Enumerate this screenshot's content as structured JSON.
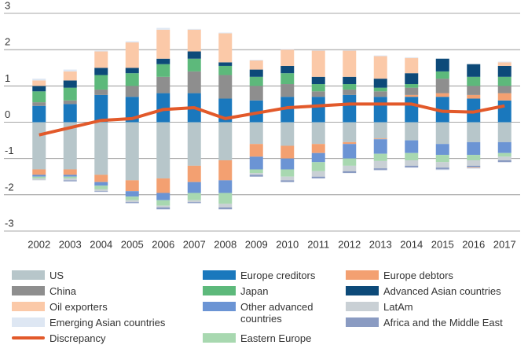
{
  "chart_data": {
    "type": "bar",
    "stacked": true,
    "categories": [
      "2002",
      "2003",
      "2004",
      "2005",
      "2006",
      "2007",
      "2008",
      "2009",
      "2010",
      "2011",
      "2012",
      "2013",
      "2014",
      "2015",
      "2016",
      "2017"
    ],
    "ylim": [
      -3,
      3
    ],
    "yticks": [
      -3,
      -2,
      -1,
      0,
      1,
      2,
      3
    ],
    "grid": true,
    "series": [
      {
        "name": "Europe creditors",
        "color": "#1a78bd",
        "values": [
          0.45,
          0.5,
          0.75,
          0.7,
          0.8,
          0.8,
          0.65,
          0.6,
          0.7,
          0.7,
          0.75,
          0.7,
          0.7,
          0.7,
          0.65,
          0.6
        ]
      },
      {
        "name": "US",
        "color": "#b7c6ca",
        "values": [
          -1.3,
          -1.3,
          -1.45,
          -1.6,
          -1.55,
          -1.2,
          -1.05,
          -0.6,
          -0.65,
          -0.6,
          -0.55,
          -0.45,
          -0.5,
          -0.6,
          -0.55,
          -0.55
        ]
      },
      {
        "name": "Europe debtors",
        "color": "#f3a071",
        "values": [
          -0.15,
          -0.15,
          -0.2,
          -0.3,
          -0.4,
          -0.45,
          -0.55,
          -0.35,
          -0.35,
          -0.25,
          -0.05,
          -0.02,
          0.05,
          0.1,
          0.1,
          0.2
        ]
      },
      {
        "name": "China",
        "color": "#8e8e8e",
        "values": [
          0.1,
          0.1,
          0.15,
          0.3,
          0.45,
          0.6,
          0.65,
          0.4,
          0.35,
          0.15,
          0.15,
          0.15,
          0.2,
          0.4,
          0.25,
          0.2
        ]
      },
      {
        "name": "Other advanced countries",
        "color": "#6b94d4",
        "values": [
          -0.05,
          -0.05,
          -0.1,
          -0.15,
          -0.2,
          -0.3,
          -0.35,
          -0.35,
          -0.3,
          -0.25,
          -0.4,
          -0.4,
          -0.35,
          -0.3,
          -0.35,
          -0.3
        ]
      },
      {
        "name": "Japan",
        "color": "#5db97b",
        "values": [
          0.3,
          0.35,
          0.4,
          0.35,
          0.35,
          0.35,
          0.25,
          0.25,
          0.3,
          0.2,
          0.15,
          0.1,
          0.1,
          0.2,
          0.25,
          0.25
        ]
      },
      {
        "name": "Eastern Europe",
        "color": "#a8d8b0",
        "values": [
          -0.05,
          -0.05,
          -0.1,
          -0.1,
          -0.15,
          -0.2,
          -0.3,
          -0.1,
          -0.2,
          -0.25,
          -0.2,
          -0.2,
          -0.2,
          -0.2,
          -0.15,
          -0.1
        ]
      },
      {
        "name": "Advanced Asian countries",
        "color": "#0d4a79",
        "values": [
          0.15,
          0.2,
          0.2,
          0.15,
          0.15,
          0.2,
          0.1,
          0.2,
          0.2,
          0.2,
          0.2,
          0.25,
          0.3,
          0.35,
          0.35,
          0.3
        ]
      },
      {
        "name": "LatAm",
        "color": "#c9d0d5",
        "values": [
          -0.05,
          -0.05,
          -0.05,
          -0.05,
          -0.05,
          -0.05,
          -0.1,
          -0.05,
          -0.1,
          -0.15,
          -0.15,
          -0.2,
          -0.15,
          -0.15,
          -0.15,
          -0.1
        ]
      },
      {
        "name": "Africa and the Middle East",
        "color": "#8a9bc2",
        "values": [
          0,
          -0.03,
          -0.02,
          -0.03,
          -0.05,
          -0.03,
          -0.05,
          -0.05,
          -0.05,
          -0.05,
          -0.05,
          -0.05,
          -0.05,
          -0.05,
          -0.05,
          -0.05
        ]
      },
      {
        "name": "Oil exporters",
        "color": "#fbc9a8",
        "values": [
          0.15,
          0.25,
          0.45,
          0.7,
          0.8,
          0.6,
          0.8,
          0.25,
          0.45,
          0.72,
          0.72,
          0.62,
          0.42,
          0,
          -0.02,
          0.1
        ]
      },
      {
        "name": "Emerging Asian countries",
        "color": "#dee7f3",
        "values": [
          0.05,
          0.05,
          0.02,
          0.03,
          0.05,
          0.02,
          0.02,
          0.02,
          0.02,
          0.02,
          0.02,
          0.02,
          0.02,
          -0.02,
          -0.02,
          0.02
        ]
      },
      {
        "name": "Discrepancy",
        "type": "line",
        "color": "#e2592a",
        "values": [
          -0.35,
          -0.15,
          0.05,
          0.1,
          0.35,
          0.4,
          0.1,
          0.25,
          0.4,
          0.45,
          0.5,
          0.5,
          0.5,
          0.3,
          0.28,
          0.45
        ]
      }
    ]
  }
}
